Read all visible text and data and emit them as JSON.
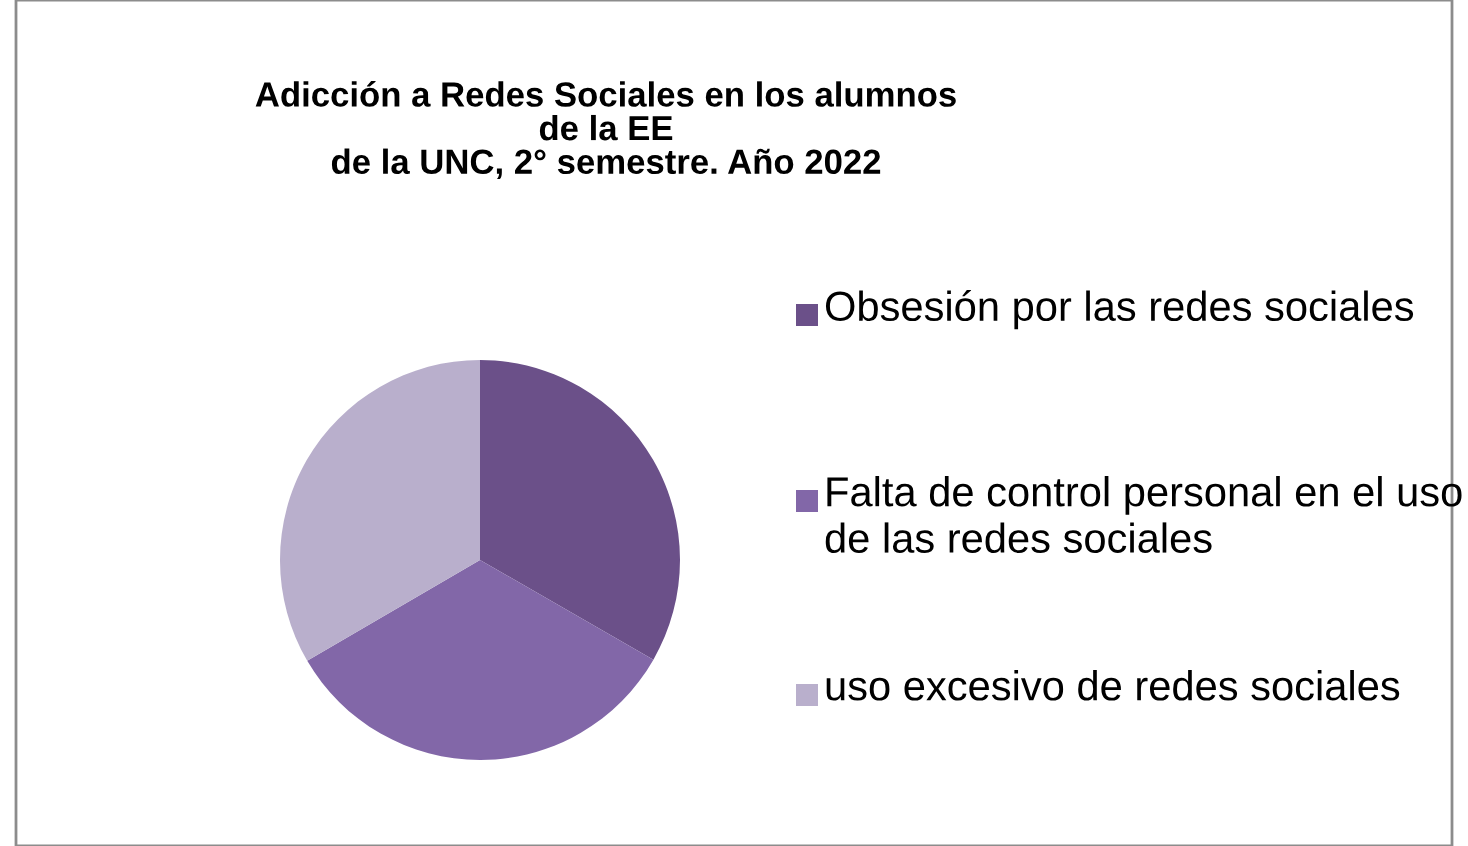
{
  "chart_data": {
    "type": "pie",
    "title": "Adicción a Redes Sociales en los alumnos\nde la EE\nde la UNC, 2° semestre. Año 2022",
    "categories": [
      "Obsesión por las redes sociales",
      "Falta de control personal en el uso de las redes sociales",
      "uso excesivo de redes sociales"
    ],
    "values": [
      33.3,
      33.3,
      33.4
    ],
    "colors": [
      "#6b5089",
      "#8267a8",
      "#b9afcc"
    ],
    "legend": "right"
  }
}
